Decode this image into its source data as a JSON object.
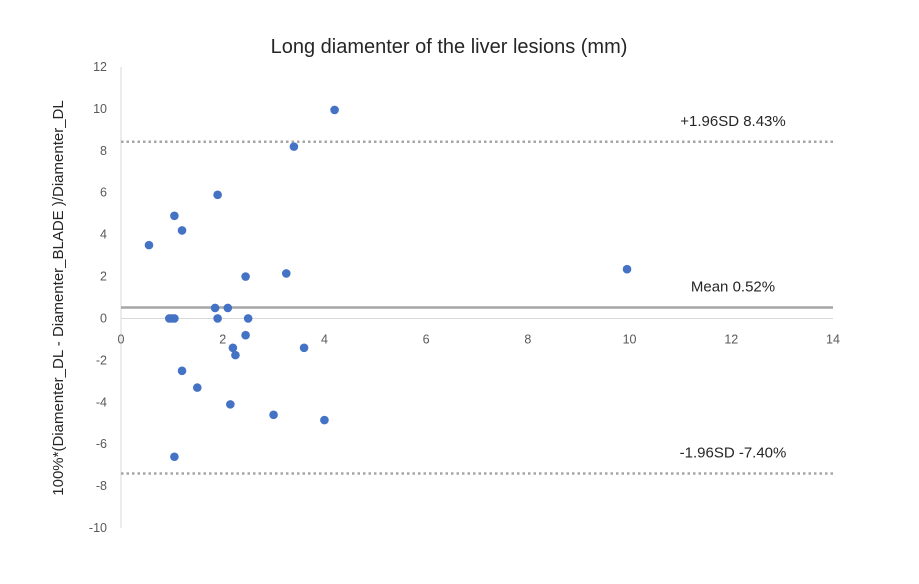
{
  "chart_data": {
    "type": "scatter",
    "title": "Long diamenter of the liver lesions (mm)",
    "xlabel": "",
    "ylabel": "100%*(Diamenter_DL - Diamenter_BLADE )/Diamenter_DL",
    "xlim": [
      0,
      14
    ],
    "ylim": [
      -10,
      12
    ],
    "x_ticks": [
      0,
      2,
      4,
      6,
      8,
      10,
      12,
      14
    ],
    "y_ticks": [
      -10,
      -8,
      -6,
      -4,
      -2,
      0,
      2,
      4,
      6,
      8,
      10,
      12
    ],
    "grid": false,
    "legend": "none",
    "series": [
      {
        "color": "#4472C4",
        "points": [
          {
            "x": 0.55,
            "y": 3.5
          },
          {
            "x": 0.95,
            "y": 0.0
          },
          {
            "x": 1.0,
            "y": 0.0
          },
          {
            "x": 1.05,
            "y": 0.0
          },
          {
            "x": 1.05,
            "y": 4.9
          },
          {
            "x": 1.05,
            "y": -6.6
          },
          {
            "x": 1.2,
            "y": 4.2
          },
          {
            "x": 1.2,
            "y": -2.5
          },
          {
            "x": 1.5,
            "y": -3.3
          },
          {
            "x": 1.85,
            "y": 0.5
          },
          {
            "x": 1.9,
            "y": 0.0
          },
          {
            "x": 1.9,
            "y": 5.9
          },
          {
            "x": 2.1,
            "y": 0.5
          },
          {
            "x": 2.15,
            "y": -4.1
          },
          {
            "x": 2.2,
            "y": -1.4
          },
          {
            "x": 2.25,
            "y": -1.75
          },
          {
            "x": 2.45,
            "y": 2.0
          },
          {
            "x": 2.45,
            "y": -0.8
          },
          {
            "x": 2.5,
            "y": 0.0
          },
          {
            "x": 3.0,
            "y": -4.6
          },
          {
            "x": 3.25,
            "y": 2.15
          },
          {
            "x": 3.4,
            "y": 8.2
          },
          {
            "x": 3.6,
            "y": -1.4
          },
          {
            "x": 4.0,
            "y": -4.85
          },
          {
            "x": 4.2,
            "y": 9.95
          },
          {
            "x": 9.95,
            "y": 2.35
          }
        ]
      }
    ],
    "reference_lines": [
      {
        "y": 8.43,
        "label": "+1.96SD 8.43%",
        "style": "dotted",
        "color": "#A6A6A6"
      },
      {
        "y": 0.52,
        "label": "Mean 0.52%",
        "style": "solid",
        "color": "#A6A6A6"
      },
      {
        "y": -7.4,
        "label": "-1.96SD -7.40%",
        "style": "dotted",
        "color": "#A6A6A6"
      }
    ],
    "axis_color": "#D9D9D9"
  }
}
